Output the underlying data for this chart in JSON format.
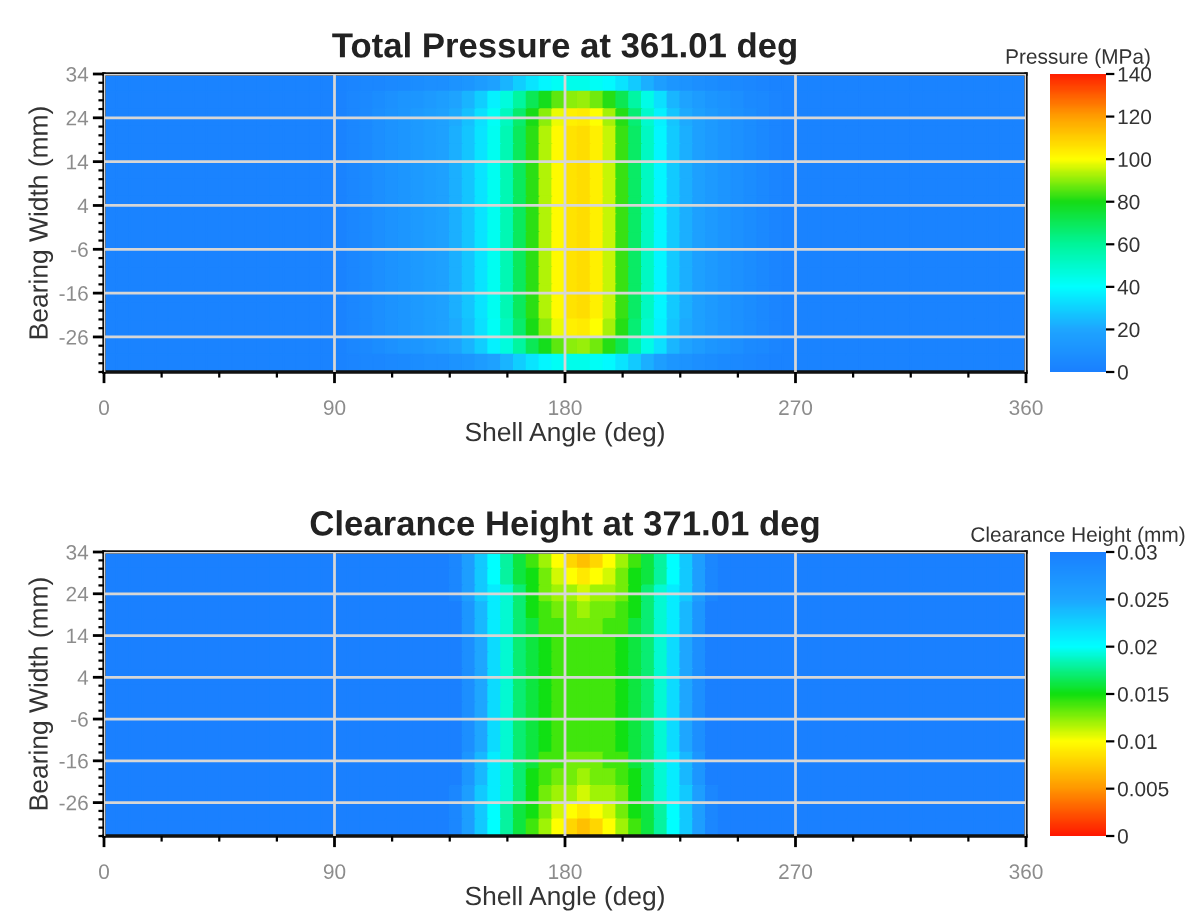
{
  "chart_data": [
    {
      "type": "heatmap",
      "title": "Total Pressure at 361.01 deg",
      "xlabel": "Shell Angle (deg)",
      "ylabel": "Bearing Width (mm)",
      "clabel": "Pressure (MPa)",
      "xlim": [
        0,
        360
      ],
      "xticks": [
        0,
        90,
        180,
        270,
        360
      ],
      "ylim": [
        -34,
        34
      ],
      "yticks": [
        34,
        24,
        14,
        4,
        -6,
        -16,
        -26
      ],
      "grid": true,
      "clim": [
        0,
        140
      ],
      "cticks": [
        0,
        20,
        40,
        60,
        80,
        100,
        120,
        140
      ],
      "colors": [
        "#1a80ff",
        "#1ea6ff",
        "#00ffff",
        "#00f59a",
        "#16dc16",
        "#ffff00",
        "#ffa000",
        "#ff2000"
      ],
      "cells": [
        [
          2,
          2,
          2,
          2,
          2,
          2,
          2,
          2,
          2,
          2,
          2,
          2,
          2,
          2,
          2,
          2,
          2,
          2,
          2,
          3,
          4,
          4,
          5,
          6,
          7,
          8,
          8,
          10,
          12,
          15,
          18,
          23,
          29,
          34,
          38,
          42,
          44,
          44,
          42,
          39,
          34,
          28,
          22,
          16,
          12,
          10,
          8,
          7,
          6,
          5,
          4,
          3,
          2,
          2,
          2,
          2,
          2,
          2,
          2,
          2,
          2,
          2,
          2,
          2,
          2,
          2,
          2,
          2,
          2,
          2,
          2,
          2
        ],
        [
          2,
          2,
          2,
          2,
          2,
          2,
          2,
          2,
          2,
          2,
          2,
          2,
          2,
          2,
          2,
          2,
          2,
          2,
          2,
          4,
          5,
          7,
          9,
          11,
          12,
          14,
          16,
          19,
          23,
          29,
          37,
          47,
          59,
          70,
          79,
          86,
          90,
          91,
          88,
          81,
          71,
          58,
          45,
          33,
          24,
          19,
          15,
          12,
          10,
          8,
          6,
          5,
          3,
          2,
          2,
          2,
          2,
          2,
          2,
          2,
          2,
          2,
          2,
          2,
          2,
          2,
          2,
          2,
          2,
          2,
          2,
          2
        ],
        [
          2,
          2,
          2,
          2,
          2,
          2,
          2,
          2,
          2,
          2,
          2,
          2,
          2,
          2,
          2,
          2,
          2,
          2,
          2,
          4,
          6,
          8,
          10,
          12,
          14,
          16,
          18,
          21,
          26,
          33,
          42,
          53,
          67,
          80,
          90,
          98,
          103,
          104,
          100,
          92,
          81,
          66,
          50,
          37,
          27,
          21,
          17,
          14,
          11,
          9,
          7,
          5,
          3,
          2,
          2,
          2,
          2,
          2,
          2,
          2,
          2,
          2,
          2,
          2,
          2,
          2,
          2,
          2,
          2,
          2,
          2,
          2
        ],
        [
          2,
          2,
          2,
          2,
          2,
          2,
          2,
          2,
          2,
          2,
          2,
          2,
          2,
          2,
          2,
          2,
          2,
          2,
          2,
          4,
          6,
          8,
          10,
          12,
          14,
          16,
          18,
          22,
          27,
          34,
          43,
          55,
          69,
          82,
          93,
          101,
          106,
          107,
          103,
          95,
          83,
          68,
          52,
          38,
          28,
          22,
          17,
          14,
          11,
          9,
          7,
          5,
          3,
          2,
          2,
          2,
          2,
          2,
          2,
          2,
          2,
          2,
          2,
          2,
          2,
          2,
          2,
          2,
          2,
          2,
          2,
          2
        ],
        [
          2,
          2,
          2,
          2,
          2,
          2,
          2,
          2,
          2,
          2,
          2,
          2,
          2,
          2,
          2,
          2,
          2,
          2,
          2,
          4,
          6,
          8,
          10,
          12,
          14,
          16,
          18,
          22,
          27,
          34,
          43,
          55,
          69,
          82,
          93,
          101,
          106,
          107,
          103,
          95,
          83,
          68,
          52,
          38,
          28,
          22,
          17,
          14,
          11,
          9,
          7,
          5,
          3,
          2,
          2,
          2,
          2,
          2,
          2,
          2,
          2,
          2,
          2,
          2,
          2,
          2,
          2,
          2,
          2,
          2,
          2,
          2
        ],
        [
          2,
          2,
          2,
          2,
          2,
          2,
          2,
          2,
          2,
          2,
          2,
          2,
          2,
          2,
          2,
          2,
          2,
          2,
          2,
          4,
          6,
          8,
          10,
          12,
          14,
          16,
          18,
          22,
          27,
          34,
          43,
          55,
          69,
          82,
          93,
          101,
          106,
          107,
          103,
          95,
          83,
          68,
          52,
          38,
          28,
          22,
          17,
          14,
          11,
          9,
          7,
          5,
          3,
          2,
          2,
          2,
          2,
          2,
          2,
          2,
          2,
          2,
          2,
          2,
          2,
          2,
          2,
          2,
          2,
          2,
          2,
          2
        ],
        [
          2,
          2,
          2,
          2,
          2,
          2,
          2,
          2,
          2,
          2,
          2,
          2,
          2,
          2,
          2,
          2,
          2,
          2,
          2,
          4,
          6,
          8,
          10,
          12,
          14,
          16,
          18,
          22,
          27,
          34,
          43,
          55,
          69,
          82,
          93,
          101,
          106,
          107,
          103,
          95,
          83,
          68,
          52,
          38,
          28,
          22,
          17,
          14,
          11,
          9,
          7,
          5,
          3,
          2,
          2,
          2,
          2,
          2,
          2,
          2,
          2,
          2,
          2,
          2,
          2,
          2,
          2,
          2,
          2,
          2,
          2,
          2
        ],
        [
          2,
          2,
          2,
          2,
          2,
          2,
          2,
          2,
          2,
          2,
          2,
          2,
          2,
          2,
          2,
          2,
          2,
          2,
          2,
          4,
          6,
          8,
          10,
          12,
          14,
          16,
          18,
          22,
          27,
          34,
          43,
          55,
          69,
          82,
          93,
          101,
          106,
          107,
          103,
          95,
          83,
          68,
          52,
          38,
          28,
          22,
          17,
          14,
          11,
          9,
          7,
          5,
          3,
          2,
          2,
          2,
          2,
          2,
          2,
          2,
          2,
          2,
          2,
          2,
          2,
          2,
          2,
          2,
          2,
          2,
          2,
          2
        ],
        [
          2,
          2,
          2,
          2,
          2,
          2,
          2,
          2,
          2,
          2,
          2,
          2,
          2,
          2,
          2,
          2,
          2,
          2,
          2,
          4,
          6,
          8,
          10,
          12,
          14,
          16,
          18,
          22,
          27,
          34,
          43,
          55,
          69,
          82,
          93,
          101,
          106,
          107,
          103,
          95,
          83,
          68,
          52,
          38,
          28,
          22,
          17,
          14,
          11,
          9,
          7,
          5,
          3,
          2,
          2,
          2,
          2,
          2,
          2,
          2,
          2,
          2,
          2,
          2,
          2,
          2,
          2,
          2,
          2,
          2,
          2,
          2
        ],
        [
          2,
          2,
          2,
          2,
          2,
          2,
          2,
          2,
          2,
          2,
          2,
          2,
          2,
          2,
          2,
          2,
          2,
          2,
          2,
          4,
          6,
          8,
          10,
          12,
          14,
          16,
          18,
          22,
          27,
          34,
          43,
          55,
          69,
          82,
          93,
          101,
          106,
          107,
          103,
          95,
          83,
          68,
          52,
          38,
          28,
          22,
          17,
          14,
          11,
          9,
          7,
          5,
          3,
          2,
          2,
          2,
          2,
          2,
          2,
          2,
          2,
          2,
          2,
          2,
          2,
          2,
          2,
          2,
          2,
          2,
          2,
          2
        ],
        [
          2,
          2,
          2,
          2,
          2,
          2,
          2,
          2,
          2,
          2,
          2,
          2,
          2,
          2,
          2,
          2,
          2,
          2,
          2,
          4,
          6,
          8,
          10,
          12,
          14,
          16,
          18,
          22,
          27,
          34,
          43,
          55,
          69,
          82,
          93,
          101,
          106,
          107,
          103,
          95,
          83,
          68,
          52,
          38,
          28,
          22,
          17,
          14,
          11,
          9,
          7,
          5,
          3,
          2,
          2,
          2,
          2,
          2,
          2,
          2,
          2,
          2,
          2,
          2,
          2,
          2,
          2,
          2,
          2,
          2,
          2,
          2
        ],
        [
          2,
          2,
          2,
          2,
          2,
          2,
          2,
          2,
          2,
          2,
          2,
          2,
          2,
          2,
          2,
          2,
          2,
          2,
          2,
          4,
          6,
          8,
          10,
          12,
          14,
          16,
          18,
          22,
          27,
          34,
          43,
          55,
          69,
          82,
          93,
          101,
          106,
          107,
          103,
          95,
          83,
          68,
          52,
          38,
          28,
          22,
          17,
          14,
          11,
          9,
          7,
          5,
          3,
          2,
          2,
          2,
          2,
          2,
          2,
          2,
          2,
          2,
          2,
          2,
          2,
          2,
          2,
          2,
          2,
          2,
          2,
          2
        ],
        [
          2,
          2,
          2,
          2,
          2,
          2,
          2,
          2,
          2,
          2,
          2,
          2,
          2,
          2,
          2,
          2,
          2,
          2,
          2,
          4,
          6,
          8,
          10,
          12,
          14,
          16,
          18,
          22,
          27,
          34,
          43,
          55,
          69,
          82,
          93,
          101,
          106,
          107,
          103,
          95,
          83,
          68,
          52,
          38,
          28,
          22,
          17,
          14,
          11,
          9,
          7,
          5,
          3,
          2,
          2,
          2,
          2,
          2,
          2,
          2,
          2,
          2,
          2,
          2,
          2,
          2,
          2,
          2,
          2,
          2,
          2,
          2
        ],
        [
          2,
          2,
          2,
          2,
          2,
          2,
          2,
          2,
          2,
          2,
          2,
          2,
          2,
          2,
          2,
          2,
          2,
          2,
          2,
          4,
          6,
          8,
          10,
          12,
          14,
          16,
          18,
          22,
          27,
          34,
          43,
          55,
          69,
          82,
          93,
          101,
          106,
          107,
          103,
          95,
          83,
          68,
          52,
          38,
          28,
          22,
          17,
          14,
          11,
          9,
          7,
          5,
          3,
          2,
          2,
          2,
          2,
          2,
          2,
          2,
          2,
          2,
          2,
          2,
          2,
          2,
          2,
          2,
          2,
          2,
          2,
          2
        ],
        [
          2,
          2,
          2,
          2,
          2,
          2,
          2,
          2,
          2,
          2,
          2,
          2,
          2,
          2,
          2,
          2,
          2,
          2,
          2,
          4,
          6,
          8,
          10,
          12,
          14,
          16,
          18,
          21,
          26,
          33,
          42,
          53,
          67,
          80,
          90,
          98,
          103,
          104,
          100,
          92,
          81,
          66,
          50,
          37,
          27,
          21,
          17,
          14,
          11,
          9,
          7,
          5,
          3,
          2,
          2,
          2,
          2,
          2,
          2,
          2,
          2,
          2,
          2,
          2,
          2,
          2,
          2,
          2,
          2,
          2,
          2,
          2
        ],
        [
          2,
          2,
          2,
          2,
          2,
          2,
          2,
          2,
          2,
          2,
          2,
          2,
          2,
          2,
          2,
          2,
          2,
          2,
          2,
          4,
          5,
          7,
          9,
          11,
          12,
          14,
          16,
          19,
          23,
          29,
          37,
          47,
          59,
          70,
          79,
          86,
          90,
          91,
          88,
          81,
          71,
          58,
          45,
          33,
          24,
          19,
          15,
          12,
          10,
          8,
          6,
          5,
          3,
          2,
          2,
          2,
          2,
          2,
          2,
          2,
          2,
          2,
          2,
          2,
          2,
          2,
          2,
          2,
          2,
          2,
          2,
          2
        ],
        [
          2,
          2,
          2,
          2,
          2,
          2,
          2,
          2,
          2,
          2,
          2,
          2,
          2,
          2,
          2,
          2,
          2,
          2,
          2,
          3,
          4,
          4,
          5,
          6,
          7,
          8,
          8,
          10,
          12,
          15,
          18,
          23,
          29,
          34,
          38,
          42,
          44,
          44,
          42,
          39,
          34,
          28,
          22,
          16,
          12,
          10,
          8,
          7,
          6,
          5,
          4,
          3,
          2,
          2,
          2,
          2,
          2,
          2,
          2,
          2,
          2,
          2,
          2,
          2,
          2,
          2,
          2,
          2,
          2,
          2,
          2,
          2
        ]
      ]
    },
    {
      "type": "heatmap",
      "title": "Clearance Height at 371.01 deg",
      "xlabel": "Shell Angle (deg)",
      "ylabel": "Bearing Width (mm)",
      "clabel": "Clearance Height (mm)",
      "xlim": [
        0,
        360
      ],
      "xticks": [
        0,
        90,
        180,
        270,
        360
      ],
      "ylim": [
        -34,
        34
      ],
      "yticks": [
        34,
        24,
        14,
        4,
        -6,
        -16,
        -26
      ],
      "grid": true,
      "clim": [
        0,
        0.03
      ],
      "cticks": [
        0,
        0.005,
        0.01,
        0.015,
        0.02,
        0.025,
        0.03
      ],
      "colors": [
        "#ff1800",
        "#ff9800",
        "#ffff00",
        "#10e010",
        "#00ffff",
        "#1ea6ff",
        "#1a80ff"
      ],
      "cells": [
        [
          0.03,
          0.03,
          0.03,
          0.03,
          0.03,
          0.03,
          0.03,
          0.03,
          0.03,
          0.03,
          0.03,
          0.03,
          0.03,
          0.03,
          0.03,
          0.03,
          0.03,
          0.03,
          0.03,
          0.03,
          0.03,
          0.03,
          0.03,
          0.03,
          0.03,
          0.03,
          0.03,
          0.029,
          0.026,
          0.023,
          0.02,
          0.018,
          0.016,
          0.014,
          0.012,
          0.01,
          0.008,
          0.007,
          0.008,
          0.01,
          0.012,
          0.014,
          0.016,
          0.018,
          0.02,
          0.023,
          0.026,
          0.029,
          0.03,
          0.03,
          0.03,
          0.03,
          0.03,
          0.03,
          0.03,
          0.03,
          0.03,
          0.03,
          0.03,
          0.03,
          0.03,
          0.03,
          0.03,
          0.03,
          0.03,
          0.03,
          0.03,
          0.03,
          0.03,
          0.03,
          0.03,
          0.03
        ],
        [
          0.03,
          0.03,
          0.03,
          0.03,
          0.03,
          0.03,
          0.03,
          0.03,
          0.03,
          0.03,
          0.03,
          0.03,
          0.03,
          0.03,
          0.03,
          0.03,
          0.03,
          0.03,
          0.03,
          0.03,
          0.03,
          0.03,
          0.03,
          0.03,
          0.03,
          0.03,
          0.03,
          0.029,
          0.026,
          0.023,
          0.02,
          0.018,
          0.016,
          0.015,
          0.013,
          0.011,
          0.01,
          0.009,
          0.01,
          0.011,
          0.013,
          0.015,
          0.016,
          0.018,
          0.02,
          0.023,
          0.026,
          0.029,
          0.03,
          0.03,
          0.03,
          0.03,
          0.03,
          0.03,
          0.03,
          0.03,
          0.03,
          0.03,
          0.03,
          0.03,
          0.03,
          0.03,
          0.03,
          0.03,
          0.03,
          0.03,
          0.03,
          0.03,
          0.03,
          0.03,
          0.03,
          0.03
        ],
        [
          0.03,
          0.03,
          0.03,
          0.03,
          0.03,
          0.03,
          0.03,
          0.03,
          0.03,
          0.03,
          0.03,
          0.03,
          0.03,
          0.03,
          0.03,
          0.03,
          0.03,
          0.03,
          0.03,
          0.03,
          0.03,
          0.03,
          0.03,
          0.03,
          0.03,
          0.03,
          0.03,
          0.029,
          0.026,
          0.023,
          0.021,
          0.019,
          0.017,
          0.015,
          0.013,
          0.012,
          0.012,
          0.011,
          0.012,
          0.012,
          0.013,
          0.015,
          0.017,
          0.019,
          0.021,
          0.023,
          0.026,
          0.029,
          0.03,
          0.03,
          0.03,
          0.03,
          0.03,
          0.03,
          0.03,
          0.03,
          0.03,
          0.03,
          0.03,
          0.03,
          0.03,
          0.03,
          0.03,
          0.03,
          0.03,
          0.03,
          0.03,
          0.03,
          0.03,
          0.03,
          0.03,
          0.03
        ],
        [
          0.03,
          0.03,
          0.03,
          0.03,
          0.03,
          0.03,
          0.03,
          0.03,
          0.03,
          0.03,
          0.03,
          0.03,
          0.03,
          0.03,
          0.03,
          0.03,
          0.03,
          0.03,
          0.03,
          0.03,
          0.03,
          0.03,
          0.03,
          0.03,
          0.03,
          0.03,
          0.03,
          0.03,
          0.027,
          0.024,
          0.021,
          0.019,
          0.017,
          0.015,
          0.014,
          0.013,
          0.013,
          0.012,
          0.013,
          0.013,
          0.014,
          0.015,
          0.017,
          0.019,
          0.021,
          0.024,
          0.027,
          0.03,
          0.03,
          0.03,
          0.03,
          0.03,
          0.03,
          0.03,
          0.03,
          0.03,
          0.03,
          0.03,
          0.03,
          0.03,
          0.03,
          0.03,
          0.03,
          0.03,
          0.03,
          0.03,
          0.03,
          0.03,
          0.03,
          0.03,
          0.03,
          0.03
        ],
        [
          0.03,
          0.03,
          0.03,
          0.03,
          0.03,
          0.03,
          0.03,
          0.03,
          0.03,
          0.03,
          0.03,
          0.03,
          0.03,
          0.03,
          0.03,
          0.03,
          0.03,
          0.03,
          0.03,
          0.03,
          0.03,
          0.03,
          0.03,
          0.03,
          0.03,
          0.03,
          0.03,
          0.03,
          0.027,
          0.024,
          0.021,
          0.019,
          0.017,
          0.016,
          0.014,
          0.014,
          0.013,
          0.013,
          0.013,
          0.014,
          0.014,
          0.016,
          0.017,
          0.019,
          0.021,
          0.024,
          0.027,
          0.03,
          0.03,
          0.03,
          0.03,
          0.03,
          0.03,
          0.03,
          0.03,
          0.03,
          0.03,
          0.03,
          0.03,
          0.03,
          0.03,
          0.03,
          0.03,
          0.03,
          0.03,
          0.03,
          0.03,
          0.03,
          0.03,
          0.03,
          0.03,
          0.03
        ],
        [
          0.03,
          0.03,
          0.03,
          0.03,
          0.03,
          0.03,
          0.03,
          0.03,
          0.03,
          0.03,
          0.03,
          0.03,
          0.03,
          0.03,
          0.03,
          0.03,
          0.03,
          0.03,
          0.03,
          0.03,
          0.03,
          0.03,
          0.03,
          0.03,
          0.03,
          0.03,
          0.03,
          0.03,
          0.028,
          0.025,
          0.022,
          0.019,
          0.017,
          0.016,
          0.015,
          0.014,
          0.014,
          0.014,
          0.014,
          0.014,
          0.015,
          0.016,
          0.017,
          0.019,
          0.022,
          0.025,
          0.028,
          0.03,
          0.03,
          0.03,
          0.03,
          0.03,
          0.03,
          0.03,
          0.03,
          0.03,
          0.03,
          0.03,
          0.03,
          0.03,
          0.03,
          0.03,
          0.03,
          0.03,
          0.03,
          0.03,
          0.03,
          0.03,
          0.03,
          0.03,
          0.03,
          0.03
        ],
        [
          0.03,
          0.03,
          0.03,
          0.03,
          0.03,
          0.03,
          0.03,
          0.03,
          0.03,
          0.03,
          0.03,
          0.03,
          0.03,
          0.03,
          0.03,
          0.03,
          0.03,
          0.03,
          0.03,
          0.03,
          0.03,
          0.03,
          0.03,
          0.03,
          0.03,
          0.03,
          0.03,
          0.03,
          0.028,
          0.025,
          0.022,
          0.019,
          0.017,
          0.016,
          0.015,
          0.014,
          0.014,
          0.014,
          0.014,
          0.014,
          0.015,
          0.016,
          0.017,
          0.019,
          0.022,
          0.025,
          0.028,
          0.03,
          0.03,
          0.03,
          0.03,
          0.03,
          0.03,
          0.03,
          0.03,
          0.03,
          0.03,
          0.03,
          0.03,
          0.03,
          0.03,
          0.03,
          0.03,
          0.03,
          0.03,
          0.03,
          0.03,
          0.03,
          0.03,
          0.03,
          0.03,
          0.03
        ],
        [
          0.03,
          0.03,
          0.03,
          0.03,
          0.03,
          0.03,
          0.03,
          0.03,
          0.03,
          0.03,
          0.03,
          0.03,
          0.03,
          0.03,
          0.03,
          0.03,
          0.03,
          0.03,
          0.03,
          0.03,
          0.03,
          0.03,
          0.03,
          0.03,
          0.03,
          0.03,
          0.03,
          0.03,
          0.028,
          0.025,
          0.022,
          0.019,
          0.017,
          0.016,
          0.015,
          0.014,
          0.014,
          0.014,
          0.014,
          0.014,
          0.015,
          0.016,
          0.017,
          0.019,
          0.022,
          0.025,
          0.028,
          0.03,
          0.03,
          0.03,
          0.03,
          0.03,
          0.03,
          0.03,
          0.03,
          0.03,
          0.03,
          0.03,
          0.03,
          0.03,
          0.03,
          0.03,
          0.03,
          0.03,
          0.03,
          0.03,
          0.03,
          0.03,
          0.03,
          0.03,
          0.03,
          0.03
        ],
        [
          0.03,
          0.03,
          0.03,
          0.03,
          0.03,
          0.03,
          0.03,
          0.03,
          0.03,
          0.03,
          0.03,
          0.03,
          0.03,
          0.03,
          0.03,
          0.03,
          0.03,
          0.03,
          0.03,
          0.03,
          0.03,
          0.03,
          0.03,
          0.03,
          0.03,
          0.03,
          0.03,
          0.03,
          0.028,
          0.025,
          0.022,
          0.019,
          0.017,
          0.016,
          0.015,
          0.014,
          0.014,
          0.014,
          0.014,
          0.014,
          0.015,
          0.016,
          0.017,
          0.019,
          0.022,
          0.025,
          0.028,
          0.03,
          0.03,
          0.03,
          0.03,
          0.03,
          0.03,
          0.03,
          0.03,
          0.03,
          0.03,
          0.03,
          0.03,
          0.03,
          0.03,
          0.03,
          0.03,
          0.03,
          0.03,
          0.03,
          0.03,
          0.03,
          0.03,
          0.03,
          0.03,
          0.03
        ],
        [
          0.03,
          0.03,
          0.03,
          0.03,
          0.03,
          0.03,
          0.03,
          0.03,
          0.03,
          0.03,
          0.03,
          0.03,
          0.03,
          0.03,
          0.03,
          0.03,
          0.03,
          0.03,
          0.03,
          0.03,
          0.03,
          0.03,
          0.03,
          0.03,
          0.03,
          0.03,
          0.03,
          0.03,
          0.028,
          0.025,
          0.022,
          0.019,
          0.017,
          0.016,
          0.015,
          0.014,
          0.014,
          0.014,
          0.014,
          0.014,
          0.015,
          0.016,
          0.017,
          0.019,
          0.022,
          0.025,
          0.028,
          0.03,
          0.03,
          0.03,
          0.03,
          0.03,
          0.03,
          0.03,
          0.03,
          0.03,
          0.03,
          0.03,
          0.03,
          0.03,
          0.03,
          0.03,
          0.03,
          0.03,
          0.03,
          0.03,
          0.03,
          0.03,
          0.03,
          0.03,
          0.03,
          0.03
        ],
        [
          0.03,
          0.03,
          0.03,
          0.03,
          0.03,
          0.03,
          0.03,
          0.03,
          0.03,
          0.03,
          0.03,
          0.03,
          0.03,
          0.03,
          0.03,
          0.03,
          0.03,
          0.03,
          0.03,
          0.03,
          0.03,
          0.03,
          0.03,
          0.03,
          0.03,
          0.03,
          0.03,
          0.03,
          0.028,
          0.025,
          0.022,
          0.019,
          0.017,
          0.016,
          0.015,
          0.014,
          0.014,
          0.014,
          0.014,
          0.014,
          0.015,
          0.016,
          0.017,
          0.019,
          0.022,
          0.025,
          0.028,
          0.03,
          0.03,
          0.03,
          0.03,
          0.03,
          0.03,
          0.03,
          0.03,
          0.03,
          0.03,
          0.03,
          0.03,
          0.03,
          0.03,
          0.03,
          0.03,
          0.03,
          0.03,
          0.03,
          0.03,
          0.03,
          0.03,
          0.03,
          0.03,
          0.03
        ],
        [
          0.03,
          0.03,
          0.03,
          0.03,
          0.03,
          0.03,
          0.03,
          0.03,
          0.03,
          0.03,
          0.03,
          0.03,
          0.03,
          0.03,
          0.03,
          0.03,
          0.03,
          0.03,
          0.03,
          0.03,
          0.03,
          0.03,
          0.03,
          0.03,
          0.03,
          0.03,
          0.03,
          0.03,
          0.028,
          0.025,
          0.022,
          0.019,
          0.017,
          0.016,
          0.015,
          0.014,
          0.014,
          0.014,
          0.014,
          0.014,
          0.015,
          0.016,
          0.017,
          0.019,
          0.022,
          0.025,
          0.028,
          0.03,
          0.03,
          0.03,
          0.03,
          0.03,
          0.03,
          0.03,
          0.03,
          0.03,
          0.03,
          0.03,
          0.03,
          0.03,
          0.03,
          0.03,
          0.03,
          0.03,
          0.03,
          0.03,
          0.03,
          0.03,
          0.03,
          0.03,
          0.03,
          0.03
        ],
        [
          0.03,
          0.03,
          0.03,
          0.03,
          0.03,
          0.03,
          0.03,
          0.03,
          0.03,
          0.03,
          0.03,
          0.03,
          0.03,
          0.03,
          0.03,
          0.03,
          0.03,
          0.03,
          0.03,
          0.03,
          0.03,
          0.03,
          0.03,
          0.03,
          0.03,
          0.03,
          0.03,
          0.03,
          0.027,
          0.024,
          0.021,
          0.019,
          0.017,
          0.016,
          0.014,
          0.014,
          0.013,
          0.013,
          0.013,
          0.014,
          0.014,
          0.016,
          0.017,
          0.019,
          0.021,
          0.024,
          0.027,
          0.03,
          0.03,
          0.03,
          0.03,
          0.03,
          0.03,
          0.03,
          0.03,
          0.03,
          0.03,
          0.03,
          0.03,
          0.03,
          0.03,
          0.03,
          0.03,
          0.03,
          0.03,
          0.03,
          0.03,
          0.03,
          0.03,
          0.03,
          0.03,
          0.03
        ],
        [
          0.03,
          0.03,
          0.03,
          0.03,
          0.03,
          0.03,
          0.03,
          0.03,
          0.03,
          0.03,
          0.03,
          0.03,
          0.03,
          0.03,
          0.03,
          0.03,
          0.03,
          0.03,
          0.03,
          0.03,
          0.03,
          0.03,
          0.03,
          0.03,
          0.03,
          0.03,
          0.03,
          0.03,
          0.027,
          0.024,
          0.021,
          0.019,
          0.017,
          0.015,
          0.014,
          0.013,
          0.013,
          0.012,
          0.013,
          0.013,
          0.014,
          0.015,
          0.017,
          0.019,
          0.021,
          0.024,
          0.027,
          0.03,
          0.03,
          0.03,
          0.03,
          0.03,
          0.03,
          0.03,
          0.03,
          0.03,
          0.03,
          0.03,
          0.03,
          0.03,
          0.03,
          0.03,
          0.03,
          0.03,
          0.03,
          0.03,
          0.03,
          0.03,
          0.03,
          0.03,
          0.03,
          0.03
        ],
        [
          0.03,
          0.03,
          0.03,
          0.03,
          0.03,
          0.03,
          0.03,
          0.03,
          0.03,
          0.03,
          0.03,
          0.03,
          0.03,
          0.03,
          0.03,
          0.03,
          0.03,
          0.03,
          0.03,
          0.03,
          0.03,
          0.03,
          0.03,
          0.03,
          0.03,
          0.03,
          0.03,
          0.029,
          0.026,
          0.023,
          0.021,
          0.019,
          0.017,
          0.015,
          0.013,
          0.012,
          0.012,
          0.011,
          0.012,
          0.012,
          0.013,
          0.015,
          0.017,
          0.019,
          0.021,
          0.023,
          0.026,
          0.029,
          0.03,
          0.03,
          0.03,
          0.03,
          0.03,
          0.03,
          0.03,
          0.03,
          0.03,
          0.03,
          0.03,
          0.03,
          0.03,
          0.03,
          0.03,
          0.03,
          0.03,
          0.03,
          0.03,
          0.03,
          0.03,
          0.03,
          0.03,
          0.03
        ],
        [
          0.03,
          0.03,
          0.03,
          0.03,
          0.03,
          0.03,
          0.03,
          0.03,
          0.03,
          0.03,
          0.03,
          0.03,
          0.03,
          0.03,
          0.03,
          0.03,
          0.03,
          0.03,
          0.03,
          0.03,
          0.03,
          0.03,
          0.03,
          0.03,
          0.03,
          0.03,
          0.03,
          0.029,
          0.026,
          0.023,
          0.02,
          0.018,
          0.016,
          0.015,
          0.013,
          0.011,
          0.01,
          0.009,
          0.01,
          0.011,
          0.013,
          0.015,
          0.016,
          0.018,
          0.02,
          0.023,
          0.026,
          0.029,
          0.03,
          0.03,
          0.03,
          0.03,
          0.03,
          0.03,
          0.03,
          0.03,
          0.03,
          0.03,
          0.03,
          0.03,
          0.03,
          0.03,
          0.03,
          0.03,
          0.03,
          0.03,
          0.03,
          0.03,
          0.03,
          0.03,
          0.03,
          0.03
        ],
        [
          0.03,
          0.03,
          0.03,
          0.03,
          0.03,
          0.03,
          0.03,
          0.03,
          0.03,
          0.03,
          0.03,
          0.03,
          0.03,
          0.03,
          0.03,
          0.03,
          0.03,
          0.03,
          0.03,
          0.03,
          0.03,
          0.03,
          0.03,
          0.03,
          0.03,
          0.03,
          0.03,
          0.029,
          0.026,
          0.023,
          0.02,
          0.018,
          0.016,
          0.014,
          0.012,
          0.01,
          0.008,
          0.007,
          0.008,
          0.01,
          0.012,
          0.014,
          0.016,
          0.018,
          0.02,
          0.023,
          0.026,
          0.029,
          0.03,
          0.03,
          0.03,
          0.03,
          0.03,
          0.03,
          0.03,
          0.03,
          0.03,
          0.03,
          0.03,
          0.03,
          0.03,
          0.03,
          0.03,
          0.03,
          0.03,
          0.03,
          0.03,
          0.03,
          0.03,
          0.03,
          0.03,
          0.03
        ]
      ]
    }
  ]
}
